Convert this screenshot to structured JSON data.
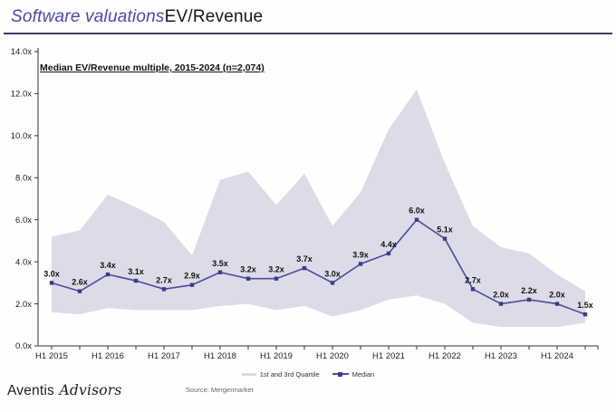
{
  "header": {
    "title_em": "Software valuations",
    "title_rest": "EV/Revenue"
  },
  "chart_data": {
    "type": "line",
    "title": "Median EV/Revenue multiple, 2015-2024 (n=2,074)",
    "xlabel": "",
    "ylabel": "",
    "ylim": [
      0,
      14
    ],
    "grid": false,
    "legend_position": "bottom",
    "categories": [
      "H1 2015",
      "H2 2015",
      "H1 2016",
      "H2 2016",
      "H1 2017",
      "H2 2017",
      "H1 2018",
      "H2 2018",
      "H1 2019",
      "H2 2019",
      "H1 2020",
      "H2 2020",
      "H1 2021",
      "H2 2021",
      "H1 2022",
      "H2 2022",
      "H1 2023",
      "H2 2023",
      "H1 2024",
      "H2 2024"
    ],
    "x_tick_labels": [
      "H1 2015",
      "H1 2016",
      "H1 2017",
      "H1 2018",
      "H1 2019",
      "H1 2020",
      "H1 2021",
      "H1 2022",
      "H1 2023",
      "H1 2024"
    ],
    "y_tick_labels": [
      "0.0x",
      "2.0x",
      "4.0x",
      "6.0x",
      "8.0x",
      "10.0x",
      "12.0x",
      "14.0x"
    ],
    "series": [
      {
        "name": "Median",
        "type": "line",
        "values": [
          3.0,
          2.6,
          3.4,
          3.1,
          2.7,
          2.9,
          3.5,
          3.2,
          3.2,
          3.7,
          3.0,
          3.9,
          4.4,
          6.0,
          5.1,
          2.7,
          2.0,
          2.2,
          2.0,
          1.5
        ],
        "labels": [
          "3.0x",
          "2.6x",
          "3.4x",
          "3.1x",
          "2.7x",
          "2.9x",
          "3.5x",
          "3.2x",
          "3.2x",
          "3.7x",
          "3.0x",
          "3.9x",
          "4.4x",
          "6.0x",
          "5.1x",
          "2.7x",
          "2.0x",
          "2.2x",
          "2.0x",
          "1.5x"
        ]
      },
      {
        "name": "1st and 3rd Quartile",
        "type": "band",
        "upper": [
          5.2,
          5.5,
          7.2,
          6.6,
          5.9,
          4.3,
          7.9,
          8.3,
          6.7,
          8.2,
          5.7,
          7.3,
          10.3,
          12.2,
          8.7,
          5.7,
          4.7,
          4.4,
          3.4,
          2.6
        ],
        "lower": [
          1.6,
          1.5,
          1.8,
          1.7,
          1.7,
          1.7,
          1.9,
          2.0,
          1.7,
          1.9,
          1.4,
          1.7,
          2.2,
          2.4,
          2.0,
          1.1,
          0.9,
          0.9,
          0.9,
          1.1
        ]
      }
    ],
    "legend": [
      {
        "label": "1st and 3rd Quartile"
      },
      {
        "label": "Median"
      }
    ],
    "colors": {
      "band": "#dcdce9",
      "line": "#4c4a9c",
      "marker": "#3d3b8e",
      "axis": "#333333",
      "tick_label": "#222222",
      "point_label": "#111111"
    }
  },
  "footer": {
    "brand_regular": "Aventis",
    "brand_italic": "Advisors",
    "source": "Source: Mergermarket"
  }
}
